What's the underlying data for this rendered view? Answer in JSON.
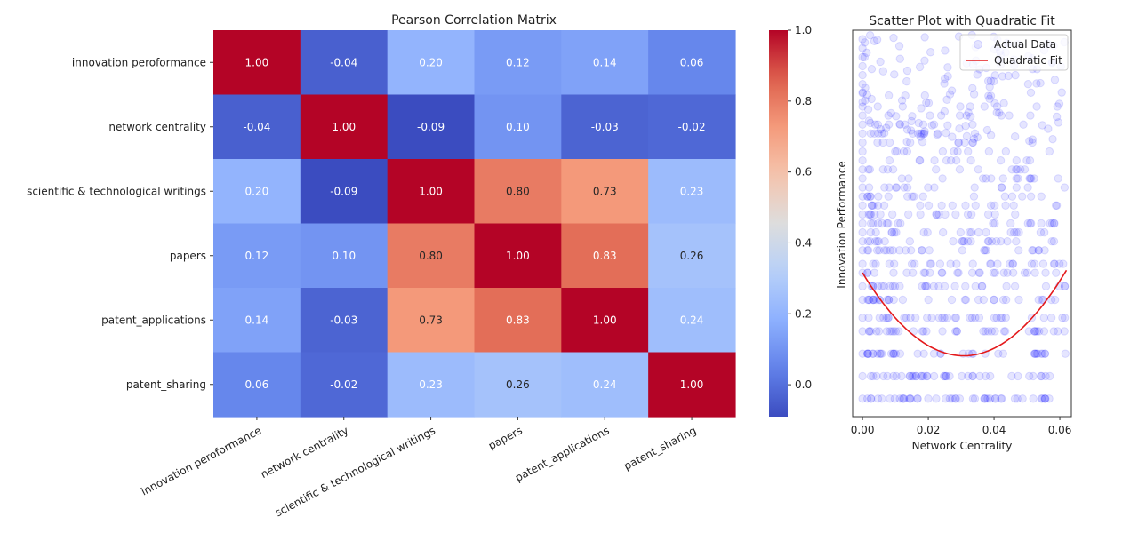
{
  "chart_data": [
    {
      "type": "heatmap",
      "title": "Pearson Correlation Matrix",
      "row_labels": [
        "innovation peroformance",
        "network centrality",
        "scientific & technological writings",
        "papers",
        "patent_applications",
        "patent_sharing"
      ],
      "col_labels": [
        "innovation peroformance",
        "network centrality",
        "scientific & technological writings",
        "papers",
        "patent_applications",
        "patent_sharing"
      ],
      "values": [
        [
          1.0,
          -0.04,
          0.2,
          0.12,
          0.14,
          0.06
        ],
        [
          -0.04,
          1.0,
          -0.09,
          0.1,
          -0.03,
          -0.02
        ],
        [
          0.2,
          -0.09,
          1.0,
          0.8,
          0.73,
          0.23
        ],
        [
          0.12,
          0.1,
          0.8,
          1.0,
          0.83,
          0.26
        ],
        [
          0.14,
          -0.03,
          0.73,
          0.83,
          1.0,
          0.24
        ],
        [
          0.06,
          -0.02,
          0.23,
          0.26,
          0.24,
          1.0
        ]
      ],
      "colormap": "coolwarm",
      "vmin": -0.09,
      "vmax": 1.0,
      "colorbar_ticks": [
        0.0,
        0.2,
        0.4,
        0.6,
        0.8,
        1.0
      ]
    },
    {
      "type": "scatter",
      "title": "Scatter Plot with Quadratic Fit",
      "xlabel": "Network Centrality",
      "ylabel": "Innovation Performance",
      "xlim": [
        -0.003,
        0.0635
      ],
      "ylim": [
        -0.4,
        8.2
      ],
      "x_ticks": [
        0.0,
        0.02,
        0.04,
        0.06
      ],
      "x_tick_labels": [
        "0.00",
        "0.02",
        "0.04",
        "0.06"
      ],
      "legend_position": "top-right",
      "series": [
        {
          "name": "Actual Data",
          "color": "#0000ff",
          "point_alpha": 0.1,
          "level_counts": [
            [
              0,
              45
            ],
            [
              0.5,
              40
            ],
            [
              1.0,
              38
            ],
            [
              1.5,
              36
            ],
            [
              1.8,
              32
            ],
            [
              2.2,
              30
            ],
            [
              2.5,
              28
            ],
            [
              2.8,
              26
            ],
            [
              3.0,
              25
            ],
            [
              3.3,
              24
            ],
            [
              3.5,
              22
            ],
            [
              3.7,
              20
            ],
            [
              3.9,
              19
            ],
            [
              4.1,
              18
            ],
            [
              4.3,
              17
            ],
            [
              4.5,
              16
            ],
            [
              4.7,
              15
            ],
            [
              4.9,
              14
            ],
            [
              5.1,
              13
            ],
            [
              5.3,
              12
            ],
            [
              5.5,
              11
            ],
            [
              5.7,
              10
            ],
            [
              5.9,
              10
            ],
            [
              6.1,
              9
            ],
            [
              6.3,
              8
            ],
            [
              6.5,
              8
            ]
          ],
          "upper_scatter": "sparse points between 5.7 and 8.1"
        },
        {
          "name": "Quadratic Fit",
          "color": "#e41a1c",
          "x_range": [
            0.0,
            0.062
          ],
          "coefficients": [
            2.8,
            -120.0,
            1950.0
          ]
        }
      ]
    }
  ]
}
